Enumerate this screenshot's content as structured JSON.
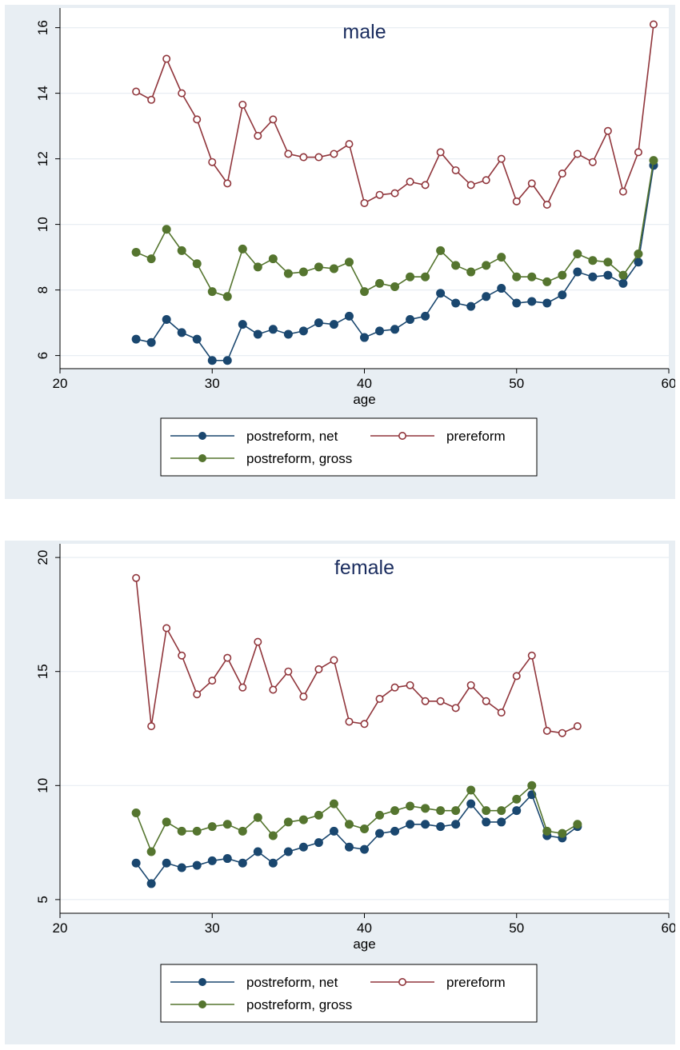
{
  "chart_data": [
    {
      "type": "line",
      "title": "male",
      "xlabel": "age",
      "ylabel": "",
      "xlim": [
        20,
        60
      ],
      "ylim": [
        5.6,
        16.6
      ],
      "xticks": [
        20,
        30,
        40,
        50,
        60
      ],
      "yticks": [
        6,
        8,
        10,
        12,
        14,
        16
      ],
      "grid": true,
      "legend_position": "bottom",
      "x": [
        25,
        26,
        27,
        28,
        29,
        30,
        31,
        32,
        33,
        34,
        35,
        36,
        37,
        38,
        39,
        40,
        41,
        42,
        43,
        44,
        45,
        46,
        47,
        48,
        49,
        50,
        51,
        52,
        53,
        54,
        55,
        56,
        57,
        58,
        59
      ],
      "series": [
        {
          "name": "postreform, net",
          "color": "#1a476f",
          "marker": "filled",
          "values": [
            6.5,
            6.4,
            7.1,
            6.7,
            6.5,
            5.85,
            5.85,
            6.95,
            6.65,
            6.8,
            6.65,
            6.75,
            7.0,
            6.95,
            7.2,
            6.55,
            6.75,
            6.8,
            7.1,
            7.2,
            7.9,
            7.6,
            7.5,
            7.8,
            8.05,
            7.6,
            7.65,
            7.6,
            7.85,
            8.55,
            8.4,
            8.45,
            8.2,
            8.85,
            11.8
          ]
        },
        {
          "name": "prereform",
          "color": "#90353b",
          "marker": "hollow",
          "values": [
            14.05,
            13.8,
            15.05,
            14.0,
            13.2,
            11.9,
            11.25,
            13.65,
            12.7,
            13.2,
            12.15,
            12.05,
            12.05,
            12.15,
            12.45,
            10.65,
            10.9,
            10.95,
            11.3,
            11.2,
            12.2,
            11.65,
            11.2,
            11.35,
            12.0,
            10.7,
            11.25,
            10.6,
            11.55,
            12.15,
            11.9,
            12.85,
            11.0,
            12.2,
            16.1
          ]
        },
        {
          "name": "postreform, gross",
          "color": "#55752f",
          "marker": "filled",
          "values": [
            9.15,
            8.95,
            9.85,
            9.2,
            8.8,
            7.95,
            7.8,
            9.25,
            8.7,
            8.95,
            8.5,
            8.55,
            8.7,
            8.65,
            8.85,
            7.95,
            8.2,
            8.1,
            8.4,
            8.4,
            9.2,
            8.75,
            8.55,
            8.75,
            9.0,
            8.4,
            8.4,
            8.25,
            8.45,
            9.1,
            8.9,
            8.85,
            8.45,
            9.1,
            11.95
          ]
        }
      ]
    },
    {
      "type": "line",
      "title": "female",
      "xlabel": "age",
      "ylabel": "",
      "xlim": [
        20,
        60
      ],
      "ylim": [
        4.4,
        20.6
      ],
      "xticks": [
        20,
        30,
        40,
        50,
        60
      ],
      "yticks": [
        5,
        10,
        15,
        20
      ],
      "grid": true,
      "legend_position": "bottom",
      "x": [
        25,
        26,
        27,
        28,
        29,
        30,
        31,
        32,
        33,
        34,
        35,
        36,
        37,
        38,
        39,
        40,
        41,
        42,
        43,
        44,
        45,
        46,
        47,
        48,
        49,
        50,
        51,
        52,
        53,
        54
      ],
      "series": [
        {
          "name": "postreform, net",
          "color": "#1a476f",
          "marker": "filled",
          "values": [
            6.6,
            5.7,
            6.6,
            6.4,
            6.5,
            6.7,
            6.8,
            6.6,
            7.1,
            6.6,
            7.1,
            7.3,
            7.5,
            8.0,
            7.3,
            7.2,
            7.9,
            8.0,
            8.3,
            8.3,
            8.2,
            8.3,
            9.2,
            8.4,
            8.4,
            8.9,
            9.6,
            7.8,
            7.7,
            8.2
          ]
        },
        {
          "name": "prereform",
          "color": "#90353b",
          "marker": "hollow",
          "values": [
            19.1,
            12.6,
            16.9,
            15.7,
            14.0,
            14.6,
            15.6,
            14.3,
            16.3,
            14.2,
            15.0,
            13.9,
            15.1,
            15.5,
            12.8,
            12.7,
            13.8,
            14.3,
            14.4,
            13.7,
            13.7,
            13.4,
            14.4,
            13.7,
            13.2,
            14.8,
            15.7,
            12.4,
            12.3,
            12.6
          ]
        },
        {
          "name": "postreform, gross",
          "color": "#55752f",
          "marker": "filled",
          "values": [
            8.8,
            7.1,
            8.4,
            8.0,
            8.0,
            8.2,
            8.3,
            8.0,
            8.6,
            7.8,
            8.4,
            8.5,
            8.7,
            9.2,
            8.3,
            8.1,
            8.7,
            8.9,
            9.1,
            9.0,
            8.9,
            8.9,
            9.8,
            8.9,
            8.9,
            9.4,
            10.0,
            8.0,
            7.9,
            8.3
          ]
        }
      ]
    }
  ]
}
